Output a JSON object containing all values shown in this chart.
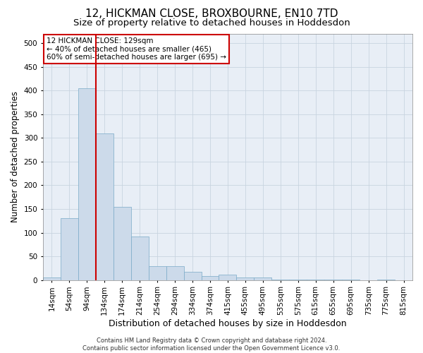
{
  "title": "12, HICKMAN CLOSE, BROXBOURNE, EN10 7TD",
  "subtitle": "Size of property relative to detached houses in Hoddesdon",
  "xlabel": "Distribution of detached houses by size in Hoddesdon",
  "ylabel": "Number of detached properties",
  "bar_color": "#ccdaea",
  "bar_edge_color": "#7aaac8",
  "background_color": "#ffffff",
  "plot_bg_color": "#e8eef6",
  "grid_color": "#c8d4e0",
  "vline_color": "#cc0000",
  "vline_x": 2.5,
  "annotation_text": "12 HICKMAN CLOSE: 129sqm\n← 40% of detached houses are smaller (465)\n60% of semi-detached houses are larger (695) →",
  "annotation_box_color": "#ffffff",
  "annotation_box_edge": "#cc0000",
  "bins": [
    "14sqm",
    "54sqm",
    "94sqm",
    "134sqm",
    "174sqm",
    "214sqm",
    "254sqm",
    "294sqm",
    "334sqm",
    "374sqm",
    "415sqm",
    "455sqm",
    "495sqm",
    "535sqm",
    "575sqm",
    "615sqm",
    "655sqm",
    "695sqm",
    "735sqm",
    "775sqm",
    "815sqm"
  ],
  "values": [
    5,
    130,
    405,
    310,
    155,
    92,
    29,
    29,
    18,
    8,
    11,
    5,
    5,
    1,
    1,
    1,
    1,
    1,
    0,
    1,
    0
  ],
  "ylim": [
    0,
    520
  ],
  "yticks": [
    0,
    50,
    100,
    150,
    200,
    250,
    300,
    350,
    400,
    450,
    500
  ],
  "footnote": "Contains HM Land Registry data © Crown copyright and database right 2024.\nContains public sector information licensed under the Open Government Licence v3.0.",
  "title_fontsize": 11,
  "subtitle_fontsize": 9.5,
  "tick_fontsize": 7.5,
  "ylabel_fontsize": 8.5,
  "xlabel_fontsize": 9,
  "annotation_fontsize": 7.5,
  "footnote_fontsize": 6
}
